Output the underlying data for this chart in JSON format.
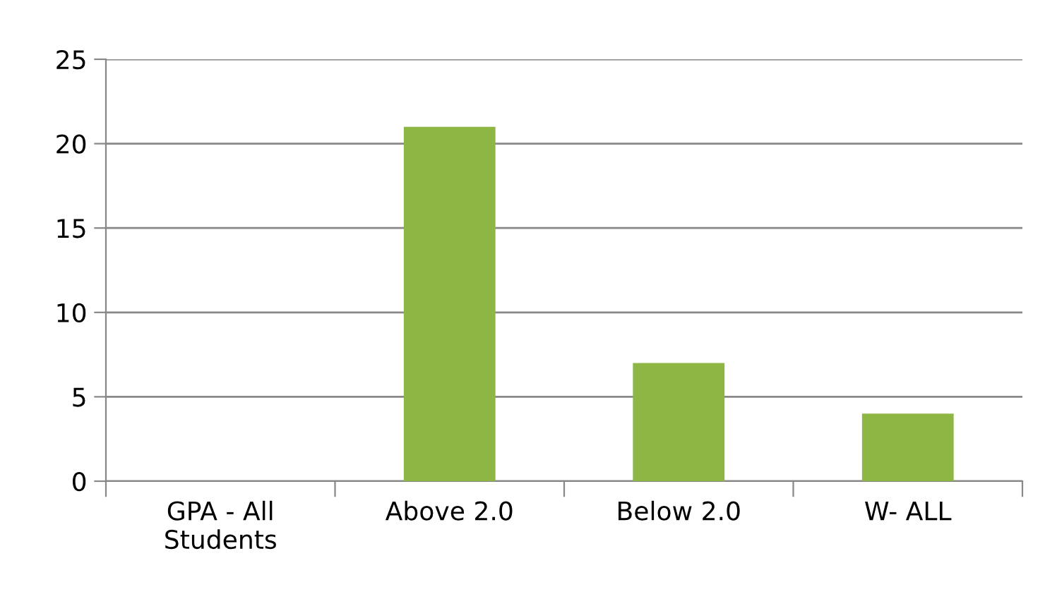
{
  "chart_data": {
    "type": "bar",
    "categories": [
      "GPA - All\nStudents",
      "Above 2.0",
      "Below 2.0",
      "W- ALL"
    ],
    "values": [
      0,
      21,
      7,
      4
    ],
    "color": "#8db645",
    "ylim": [
      0,
      25
    ],
    "yticks": [
      0,
      5,
      10,
      15,
      20,
      25
    ],
    "grid": "y"
  }
}
